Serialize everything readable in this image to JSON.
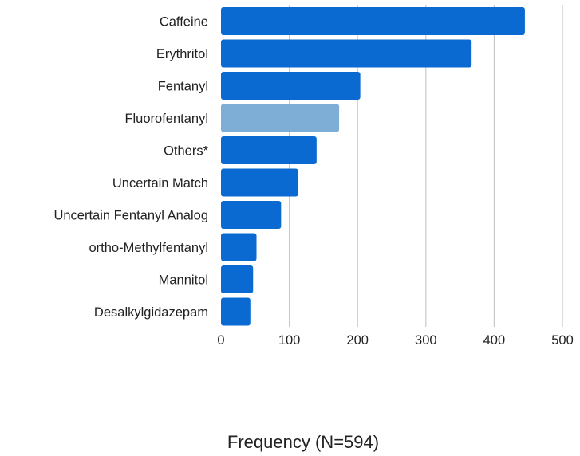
{
  "chart_data": {
    "type": "bar",
    "orientation": "horizontal",
    "title": "",
    "xlabel": "Frequency (N=594)",
    "ylabel": "",
    "xlim": [
      0,
      500
    ],
    "xticks": [
      0,
      100,
      200,
      300,
      400,
      500
    ],
    "grid": "vertical",
    "categories": [
      "Caffeine",
      "Erythritol",
      "Fentanyl",
      "Fluorofentanyl",
      "Others*",
      "Uncertain Match",
      "Uncertain Fentanyl Analog",
      "ortho-Methylfentanyl",
      "Mannitol",
      "Desalkylgidazepam"
    ],
    "values": [
      445,
      367,
      204,
      173,
      140,
      113,
      88,
      52,
      47,
      43
    ],
    "colors": {
      "default": "#0a6ad2",
      "highlight": "#7eaed6",
      "highlight_category": "Fluorofentanyl",
      "grid": "#c8c8c8",
      "text": "#222222"
    }
  }
}
